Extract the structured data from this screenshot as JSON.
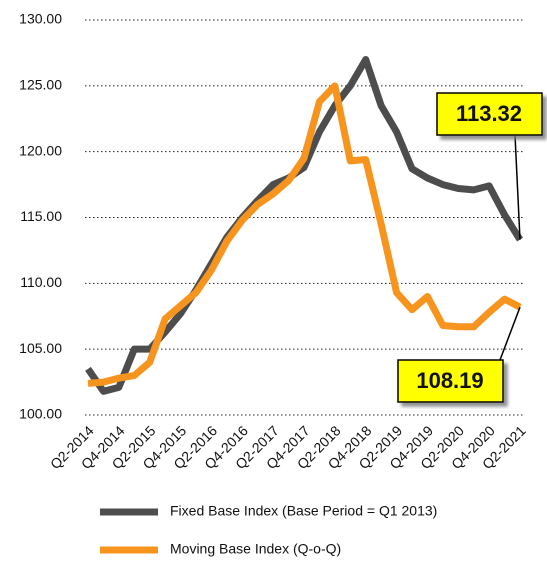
{
  "chart_data": {
    "type": "line",
    "categories": [
      "Q2-2014",
      null,
      "Q4-2014",
      null,
      "Q2-2015",
      null,
      "Q4-2015",
      null,
      "Q2-2016",
      null,
      "Q4-2016",
      null,
      "Q2-2017",
      null,
      "Q4-2017",
      null,
      "Q2-2018",
      null,
      "Q4-2018",
      null,
      "Q2-2019",
      null,
      "Q4-2019",
      null,
      "Q2-2020",
      null,
      "Q4-2020",
      null,
      "Q2-2021"
    ],
    "series": [
      {
        "name": "Fixed Base Index (Base Period = Q1 2013)",
        "color": "#4d4d4d",
        "values": [
          103.5,
          101.8,
          102.1,
          105.0,
          105.0,
          106.3,
          107.7,
          109.5,
          111.5,
          113.5,
          115.0,
          116.3,
          117.5,
          118.0,
          118.8,
          121.5,
          123.5,
          125.0,
          127.0,
          123.5,
          121.5,
          118.7,
          118.0,
          117.5,
          117.2,
          117.1,
          117.4,
          115.2,
          113.32
        ]
      },
      {
        "name": "Moving Base Index (Q-o-Q)",
        "color": "#f7941d",
        "values": [
          102.4,
          102.5,
          102.8,
          103.0,
          104.0,
          107.3,
          108.3,
          109.3,
          111.0,
          113.2,
          114.8,
          116.0,
          116.8,
          117.8,
          119.5,
          123.8,
          125.0,
          119.3,
          119.4,
          114.5,
          109.3,
          108.0,
          109.0,
          106.8,
          106.7,
          106.7,
          107.8,
          108.8,
          108.19
        ]
      }
    ],
    "ylim": [
      100,
      130
    ],
    "yticks": [
      {
        "value": 100,
        "label": "100.00"
      },
      {
        "value": 105,
        "label": "105.00"
      },
      {
        "value": 110,
        "label": "110.00"
      },
      {
        "value": 115,
        "label": "115.00"
      },
      {
        "value": 120,
        "label": "120.00"
      },
      {
        "value": 125,
        "label": "125.00"
      },
      {
        "value": 130,
        "label": "130.00"
      }
    ],
    "grid": true,
    "legend": "bottom"
  }
}
